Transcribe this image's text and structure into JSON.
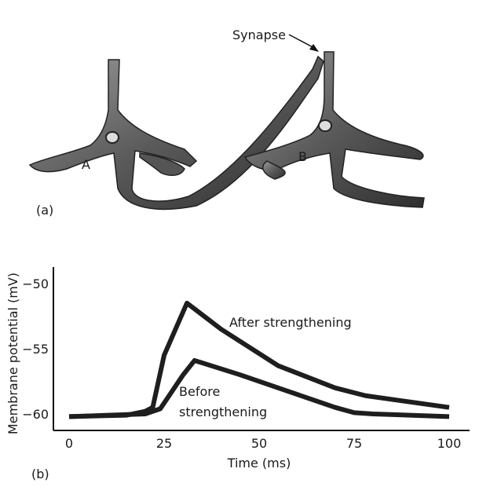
{
  "panel_a": {
    "label": "(a)",
    "neuron_a_label": "A",
    "neuron_b_label": "B",
    "synapse_label": "Synapse"
  },
  "panel_b": {
    "label": "(b)"
  },
  "chart_data": {
    "type": "line",
    "title": "",
    "xlabel": "Time (ms)",
    "ylabel": "Membrane potential (mV)",
    "xlim": [
      0,
      102
    ],
    "ylim": [
      -61,
      -48
    ],
    "xticks": [
      "0",
      "25",
      "50",
      "75",
      "100"
    ],
    "yticks": [
      "−50",
      "−55",
      "−60"
    ],
    "grid": false,
    "series": [
      {
        "name": "After strengthening",
        "x": [
          0,
          15,
          20,
          22,
          25,
          28,
          31,
          40,
          55,
          70,
          78,
          100
        ],
        "y": [
          -60.2,
          -60.1,
          -59.8,
          -59.5,
          -55.5,
          -53.5,
          -51.5,
          -53.5,
          -56.3,
          -58.0,
          -58.6,
          -59.5
        ]
      },
      {
        "name": "Before strengthening",
        "x": [
          0,
          20,
          24,
          27,
          30,
          33,
          45,
          55,
          70,
          75,
          80,
          100
        ],
        "y": [
          -60.2,
          -60.0,
          -59.6,
          -58.3,
          -57.0,
          -55.9,
          -57.0,
          -58.0,
          -59.5,
          -59.9,
          -60.0,
          -60.2
        ]
      }
    ],
    "annotations": [
      "After strengthening",
      "Before",
      "strengthening"
    ]
  }
}
